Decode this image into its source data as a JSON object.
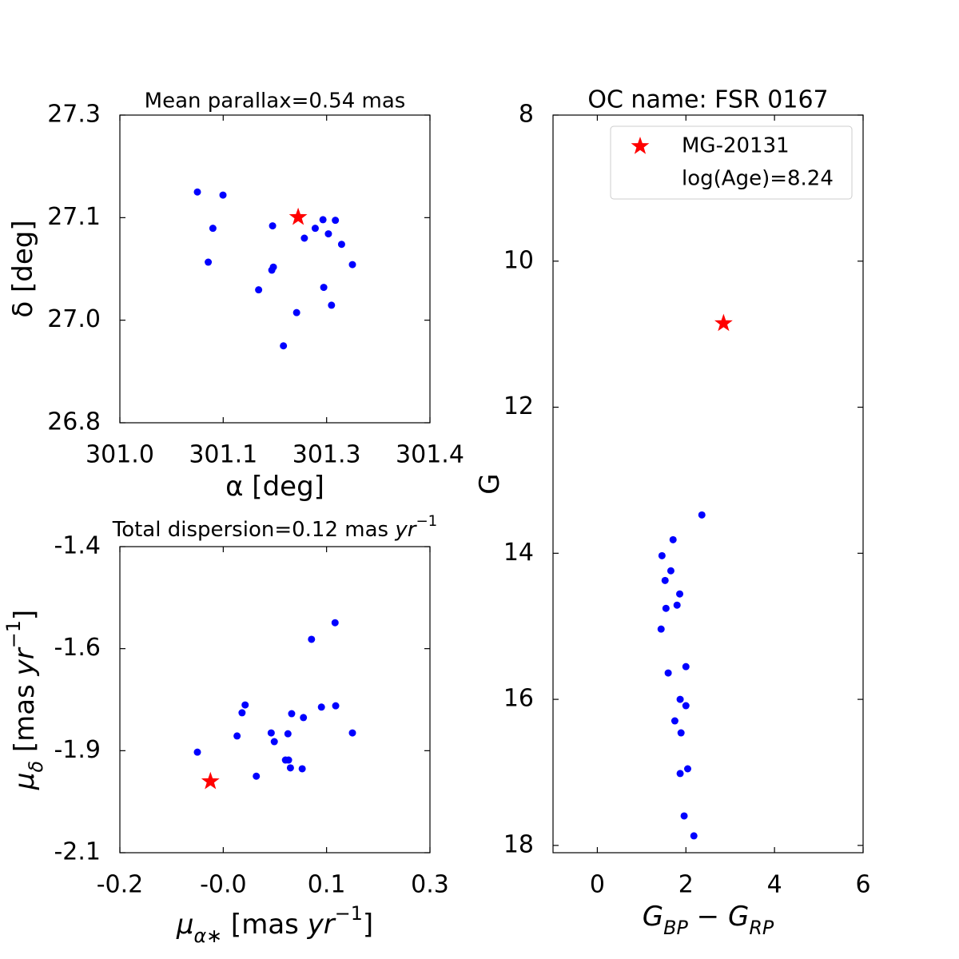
{
  "chart_data": [
    {
      "type": "scatter",
      "title": "Mean parallax=0.54 mas",
      "xlabel": [
        {
          "text": "α [deg]"
        }
      ],
      "ylabel": [
        {
          "text": "δ [deg]"
        }
      ],
      "xlim": [
        301.0,
        301.4
      ],
      "ylim": [
        26.8,
        27.3
      ],
      "xticks": [
        {
          "value": 301.0,
          "label": "301.0"
        },
        {
          "value": 301.1333,
          "label": "301.1"
        },
        {
          "value": 301.2667,
          "label": "301.3"
        },
        301.4
      ],
      "yticks": [
        26.8,
        {
          "value": 26.9667,
          "label": "27.0"
        },
        {
          "value": 27.1333,
          "label": "27.1"
        },
        27.3
      ],
      "series": [
        {
          "color": "#0000ff",
          "marker": "circle",
          "x": [
            301.1,
            301.133,
            301.12,
            301.114,
            301.197,
            301.238,
            301.252,
            301.262,
            301.278,
            301.269,
            301.286,
            301.3,
            301.196,
            301.198,
            301.179,
            301.263,
            301.273,
            301.228,
            301.211
          ],
          "y": [
            27.175,
            27.17,
            27.116,
            27.061,
            27.12,
            27.1,
            27.116,
            27.13,
            27.129,
            27.107,
            27.09,
            27.057,
            27.048,
            27.053,
            27.016,
            27.02,
            26.991,
            26.979,
            26.925
          ]
        },
        {
          "color": "#ff0000",
          "marker": "star",
          "x": [
            301.23
          ],
          "y": [
            27.134
          ]
        }
      ]
    },
    {
      "type": "scatter",
      "title": [
        {
          "text": "Total dispersion=0.12 mas "
        },
        {
          "text": "yr",
          "italic": true
        },
        {
          "text": "−1",
          "sup": true
        }
      ],
      "xlabel": [
        {
          "text": "μ",
          "italic": true
        },
        {
          "text": "α∗",
          "sub": true,
          "italic": true
        },
        {
          "text": " [mas "
        },
        {
          "text": "yr",
          "italic": true
        },
        {
          "text": "−1",
          "sup": true
        },
        {
          "text": "]"
        }
      ],
      "ylabel": [
        {
          "text": "μ",
          "italic": true
        },
        {
          "text": "δ",
          "sub": true,
          "italic": true
        },
        {
          "text": " [mas "
        },
        {
          "text": "yr",
          "italic": true
        },
        {
          "text": "−1",
          "sup": true
        },
        {
          "text": "]"
        }
      ],
      "xlim": [
        -0.2,
        0.3
      ],
      "ylim": [
        -2.1,
        -1.4
      ],
      "xticks": [
        -0.2,
        {
          "value": -0.0333,
          "label": "-0.0"
        },
        {
          "value": 0.1333,
          "label": "0.1"
        },
        0.3
      ],
      "yticks": [
        -2.1,
        {
          "value": -1.8667,
          "label": "-1.9"
        },
        {
          "value": -1.6333,
          "label": "-1.6"
        },
        -1.4
      ],
      "series": [
        {
          "color": "#0000ff",
          "marker": "circle",
          "x": [
            -0.075,
            -0.011,
            -0.003,
            0.002,
            0.02,
            0.044,
            0.049,
            0.067,
            0.072,
            0.075,
            0.071,
            0.077,
            0.094,
            0.096,
            0.109,
            0.125,
            0.148,
            0.147,
            0.175
          ],
          "y": [
            -1.87,
            -1.833,
            -1.78,
            -1.762,
            -1.925,
            -1.826,
            -1.846,
            -1.888,
            -1.888,
            -1.906,
            -1.828,
            -1.782,
            -1.908,
            -1.791,
            -1.612,
            -1.767,
            -1.764,
            -1.574,
            -1.826
          ]
        },
        {
          "color": "#ff0000",
          "marker": "star",
          "x": [
            -0.054
          ],
          "y": [
            -1.937
          ]
        }
      ]
    },
    {
      "type": "scatter",
      "title": "OC name: FSR 0167",
      "xlabel": [
        {
          "text": "G",
          "italic": true
        },
        {
          "text": "BP",
          "sub": true,
          "italic": true
        },
        {
          "text": " − "
        },
        {
          "text": "G",
          "italic": true
        },
        {
          "text": "RP",
          "sub": true,
          "italic": true
        }
      ],
      "ylabel": [
        {
          "text": "G"
        }
      ],
      "xlim": [
        -1,
        6
      ],
      "ylim": [
        8,
        18.1
      ],
      "invert_y": true,
      "xticks": [
        0,
        2,
        4,
        6
      ],
      "yticks": [
        8,
        10,
        12,
        14,
        16,
        18
      ],
      "legend": "upper right",
      "legend_note": "log(Age)=8.24",
      "series": [
        {
          "color": "#0000ff",
          "marker": "circle",
          "x": [
            2.36,
            1.71,
            1.46,
            1.66,
            1.53,
            1.86,
            1.8,
            1.55,
            1.44,
            2.0,
            1.6,
            1.87,
            2.0,
            1.75,
            1.89,
            2.04,
            1.87,
            1.96,
            2.18
          ],
          "y": [
            13.475,
            13.814,
            14.033,
            14.24,
            14.372,
            14.557,
            14.71,
            14.754,
            15.038,
            15.552,
            15.639,
            16.0,
            16.087,
            16.295,
            16.459,
            16.951,
            17.016,
            17.596,
            17.869
          ]
        },
        {
          "name": "MG-20131",
          "color": "#ff0000",
          "marker": "star",
          "x": [
            2.85
          ],
          "y": [
            10.852
          ]
        }
      ]
    }
  ]
}
